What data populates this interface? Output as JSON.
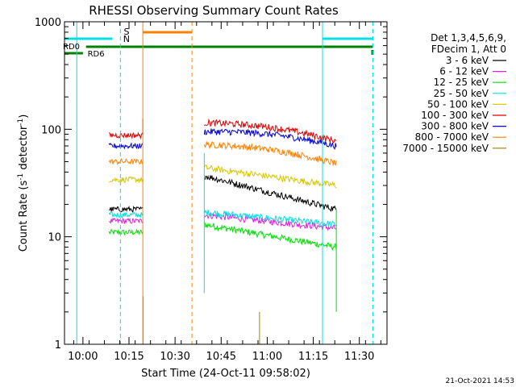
{
  "chart_data": {
    "type": "line",
    "title": "RHESSI Observing Summary Count Rates",
    "xlabel": "Start Time (24-Oct-11 09:58:02)",
    "ylabel_main": "Count Rate (s",
    "ylabel_sup1": "-1",
    "ylabel_mid": " detector",
    "ylabel_sup2": "-1",
    "ylabel_end": ")",
    "yscale": "log",
    "ylim": [
      1,
      1000
    ],
    "xlim_minutes": [
      -4,
      101
    ],
    "x_ticks": [
      {
        "m": 2,
        "label": "10:00"
      },
      {
        "m": 17,
        "label": "10:15"
      },
      {
        "m": 32,
        "label": "10:30"
      },
      {
        "m": 47,
        "label": "10:45"
      },
      {
        "m": 62,
        "label": "11:00"
      },
      {
        "m": 77,
        "label": "11:15"
      },
      {
        "m": 92,
        "label": "11:30"
      }
    ],
    "y_ticks": [
      {
        "v": 1,
        "label": "1"
      },
      {
        "v": 10,
        "label": "10"
      },
      {
        "v": 100,
        "label": "100"
      },
      {
        "v": 1000,
        "label": "1000"
      }
    ],
    "legend_header": [
      "Det 1,3,4,5,6,9,",
      "FDecim 1, Att 0"
    ],
    "series": [
      {
        "name": "3 - 6 keV",
        "color": "#000000",
        "seg1": 18,
        "seg2a": 37,
        "seg2b": 18
      },
      {
        "name": "6 - 12 keV",
        "color": "#e020e0",
        "seg1": 14,
        "seg2a": 16,
        "seg2b": 12
      },
      {
        "name": "12 - 25 keV",
        "color": "#00e000",
        "seg1": 11,
        "seg2a": 13,
        "seg2b": 8
      },
      {
        "name": "25 - 50 keV",
        "color": "#00e0e0",
        "seg1": 16,
        "seg2a": 17,
        "seg2b": 13
      },
      {
        "name": "50 - 100 keV",
        "color": "#d8c800",
        "seg1": 34,
        "seg2a": 44,
        "seg2b": 30
      },
      {
        "name": "100 - 300 keV",
        "color": "#e00000",
        "seg1": 88,
        "seg2a": 115,
        "seg2b": 78
      },
      {
        "name": "300 - 800 keV",
        "color": "#0000d8",
        "seg1": 70,
        "seg2a": 95,
        "seg2b": 70
      },
      {
        "name": "800 - 7000 keV",
        "color": "#ff8000",
        "seg1": 50,
        "seg2a": 72,
        "seg2b": 48
      },
      {
        "name": "7000 - 15000 keV",
        "color": "#a08000",
        "seg1": 1,
        "seg2a": 1,
        "seg2b": 1
      }
    ],
    "flags": {
      "saa_label": "S",
      "night_label": "N",
      "rd0_label": "RD0",
      "rd6_label": "RD6"
    },
    "timestamp": "21-Oct-2021 14:53"
  }
}
